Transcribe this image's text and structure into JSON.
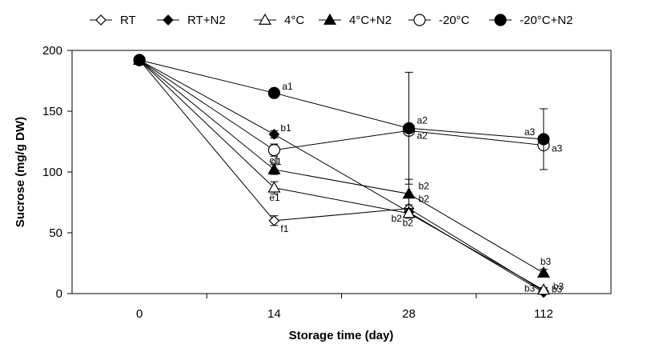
{
  "chart_data": {
    "type": "line",
    "title": "",
    "xlabel": "Storage time (day)",
    "ylabel": "Sucrose (mg/g DW)",
    "categories": [
      "0",
      "14",
      "28",
      "112"
    ],
    "ylim": [
      0,
      200
    ],
    "yticks": [
      0,
      50,
      100,
      150,
      200
    ],
    "grid": false,
    "legend_position": "top",
    "series": [
      {
        "name": "RT",
        "marker": "diamond",
        "filled": false,
        "values": [
          192,
          60,
          70,
          2
        ],
        "err": [
          0,
          4,
          3,
          2
        ],
        "labels": [
          "",
          "f1",
          "b2",
          "b3"
        ]
      },
      {
        "name": "RT+N2",
        "marker": "diamond",
        "filled": true,
        "values": [
          192,
          131,
          67,
          1
        ],
        "err": [
          0,
          3,
          3,
          1
        ],
        "labels": [
          "",
          "b1",
          "b2",
          "b3"
        ]
      },
      {
        "name": "4°C",
        "marker": "triangle",
        "filled": false,
        "values": [
          192,
          87,
          66,
          3
        ],
        "err": [
          0,
          5,
          4,
          2
        ],
        "labels": [
          "",
          "e1",
          "b2",
          "b3"
        ]
      },
      {
        "name": "4°C+N2",
        "marker": "triangle",
        "filled": true,
        "values": [
          192,
          102,
          82,
          17
        ],
        "err": [
          0,
          4,
          12,
          3
        ],
        "labels": [
          "",
          "d1",
          "b2",
          "b3"
        ]
      },
      {
        "name": "-20°C",
        "marker": "circle",
        "filled": false,
        "values": [
          192,
          118,
          134,
          122
        ],
        "err": [
          0,
          5,
          3,
          3
        ],
        "labels": [
          "",
          "c1",
          "a2",
          "a3"
        ]
      },
      {
        "name": "-20°C+N2",
        "marker": "circle",
        "filled": true,
        "values": [
          192,
          165,
          136,
          127
        ],
        "err": [
          0,
          2,
          46,
          25
        ],
        "labels": [
          "",
          "a1",
          "a2",
          "a3"
        ]
      }
    ]
  }
}
